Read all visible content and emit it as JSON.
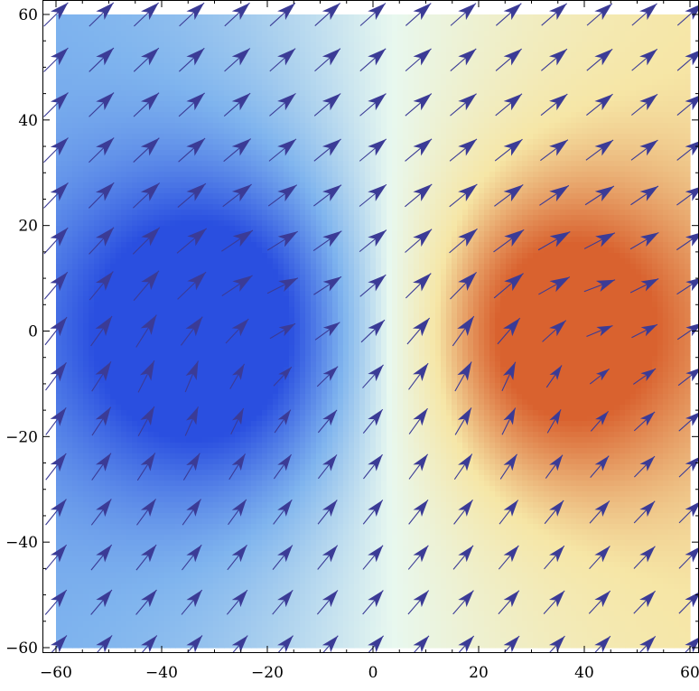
{
  "chart_data": {
    "type": "vector-field",
    "title": "",
    "xlabel": "",
    "ylabel": "",
    "xlim": [
      -60,
      60
    ],
    "ylim": [
      -60,
      60
    ],
    "x_ticks": [
      -60,
      -40,
      -20,
      0,
      20,
      40,
      60
    ],
    "y_ticks": [
      -60,
      -40,
      -20,
      0,
      20,
      40,
      60
    ],
    "x_tick_labels": [
      "−60",
      "−40",
      "−20",
      "0",
      "20",
      "40",
      "60"
    ],
    "y_tick_labels": [
      "−60",
      "−40",
      "−20",
      "0",
      "20",
      "40",
      "60"
    ],
    "background": {
      "type": "density",
      "description_free": true,
      "min_center": [
        -28,
        0
      ],
      "max_center": [
        32,
        0
      ],
      "colors": [
        "#2a4fe0",
        "#7fb4ee",
        "#e8f8ef",
        "#f6e6a6",
        "#d9622f"
      ]
    },
    "arrow_color": "#3b3b96",
    "grid_x": [
      -60,
      -51.4,
      -42.9,
      -34.3,
      -25.7,
      -17.1,
      -8.6,
      0,
      8.6,
      17.1,
      25.7,
      34.3,
      42.9,
      51.4,
      60
    ],
    "grid_y": [
      -60,
      -51.4,
      -42.9,
      -34.3,
      -25.7,
      -17.1,
      -8.6,
      0,
      8.6,
      17.1,
      25.7,
      34.3,
      42.9,
      51.4,
      60
    ],
    "field": {
      "uniform": [
        1,
        1
      ],
      "vortices": [
        {
          "x": -28,
          "y": 0,
          "strength": 900,
          "core": 14
        },
        {
          "x": 32,
          "y": 0,
          "strength": 900,
          "core": 14
        }
      ]
    }
  }
}
